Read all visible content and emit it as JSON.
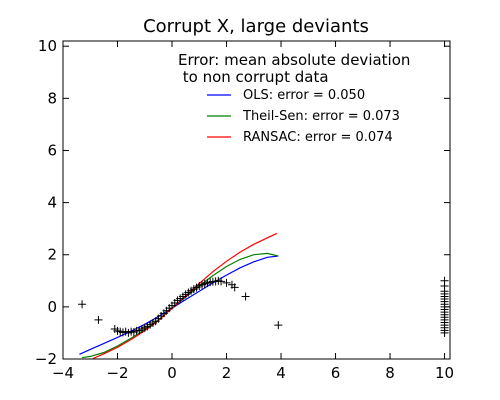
{
  "chart_data": {
    "type": "scatter",
    "title": "Corrupt X, large deviants",
    "xlabel": "",
    "ylabel": "",
    "xlim": [
      -4,
      10.2
    ],
    "ylim": [
      -2,
      10.2
    ],
    "xticks": [
      -4,
      -2,
      0,
      2,
      4,
      6,
      8,
      10
    ],
    "yticks": [
      -2,
      0,
      2,
      4,
      6,
      8,
      10
    ],
    "tick_labels_x": [
      "−4",
      "−2",
      "0",
      "2",
      "4",
      "6",
      "8",
      "10"
    ],
    "tick_labels_y": [
      "−2",
      "0",
      "2",
      "4",
      "6",
      "8",
      "10"
    ],
    "grid": false,
    "legend": {
      "placement": "top-right",
      "title_line1": "Error: mean absolute deviation",
      "title_line2": " to non corrupt data"
    },
    "series": [
      {
        "name": "OLS: error = 0.050",
        "kind": "line",
        "color": "#0000ff",
        "x": [
          -3.4,
          -3.0,
          -2.5,
          -2.0,
          -1.5,
          -1.0,
          -0.5,
          0.0,
          0.5,
          1.0,
          1.5,
          2.0,
          2.5,
          3.0,
          3.5,
          3.9
        ],
        "y": [
          -1.82,
          -1.63,
          -1.4,
          -1.17,
          -0.93,
          -0.67,
          -0.37,
          -0.05,
          0.28,
          0.6,
          0.92,
          1.22,
          1.5,
          1.73,
          1.9,
          1.95
        ]
      },
      {
        "name": "Theil-Sen: error = 0.073",
        "kind": "line",
        "color": "#008000",
        "x": [
          -3.3,
          -3.0,
          -2.5,
          -2.0,
          -1.5,
          -1.0,
          -0.5,
          0.0,
          0.5,
          1.0,
          1.5,
          2.0,
          2.5,
          3.0,
          3.5,
          3.9
        ],
        "y": [
          -1.95,
          -1.9,
          -1.75,
          -1.5,
          -1.2,
          -0.88,
          -0.5,
          -0.05,
          0.38,
          0.8,
          1.2,
          1.55,
          1.82,
          2.0,
          2.05,
          1.95
        ]
      },
      {
        "name": "RANSAC: error = 0.074",
        "kind": "line",
        "color": "#ff0000",
        "x": [
          -2.9,
          -2.5,
          -2.0,
          -1.5,
          -1.0,
          -0.5,
          0.0,
          0.5,
          1.0,
          1.5,
          2.0,
          2.5,
          3.0,
          3.5,
          3.85
        ],
        "y": [
          -1.98,
          -1.8,
          -1.55,
          -1.25,
          -0.92,
          -0.52,
          -0.05,
          0.42,
          0.9,
          1.35,
          1.75,
          2.1,
          2.4,
          2.65,
          2.82
        ]
      },
      {
        "kind": "markers",
        "marker": "+",
        "color": "#000000",
        "x": [
          -3.3,
          -2.7,
          -2.1,
          -2.0,
          -1.9,
          -1.8,
          -1.7,
          -1.6,
          -1.5,
          -1.4,
          -1.3,
          -1.2,
          -1.1,
          -1.0,
          -0.9,
          -0.8,
          -0.7,
          -0.6,
          -0.5,
          -0.4,
          -0.3,
          -0.2,
          -0.1,
          0.0,
          0.1,
          0.2,
          0.3,
          0.4,
          0.5,
          0.6,
          0.7,
          0.8,
          0.9,
          1.0,
          1.1,
          1.2,
          1.3,
          1.4,
          1.5,
          1.6,
          1.7,
          1.8,
          2.0,
          2.2,
          2.3,
          2.7,
          3.9,
          10.0,
          10.0,
          10.0,
          10.0,
          10.0,
          10.0,
          10.0,
          10.0,
          10.0,
          10.0,
          10.0,
          10.0,
          10.0,
          10.0,
          10.0,
          10.0,
          10.0,
          10.0,
          10.0
        ],
        "y": [
          0.1,
          -0.5,
          -0.85,
          -0.92,
          -0.95,
          -0.98,
          -0.95,
          -1.0,
          -0.95,
          -0.97,
          -0.92,
          -0.9,
          -0.85,
          -0.8,
          -0.75,
          -0.68,
          -0.62,
          -0.55,
          -0.45,
          -0.35,
          -0.25,
          -0.15,
          -0.05,
          0.05,
          0.15,
          0.25,
          0.32,
          0.4,
          0.48,
          0.55,
          0.62,
          0.68,
          0.74,
          0.8,
          0.85,
          0.88,
          0.92,
          0.95,
          0.97,
          0.98,
          1.0,
          0.98,
          0.92,
          0.85,
          0.75,
          0.4,
          -0.7,
          -1.0,
          -0.9,
          -0.8,
          -0.7,
          -0.6,
          -0.5,
          -0.4,
          -0.3,
          -0.2,
          -0.1,
          0.0,
          0.1,
          0.2,
          0.3,
          0.4,
          0.5,
          0.6,
          0.8,
          1.0
        ]
      }
    ]
  }
}
